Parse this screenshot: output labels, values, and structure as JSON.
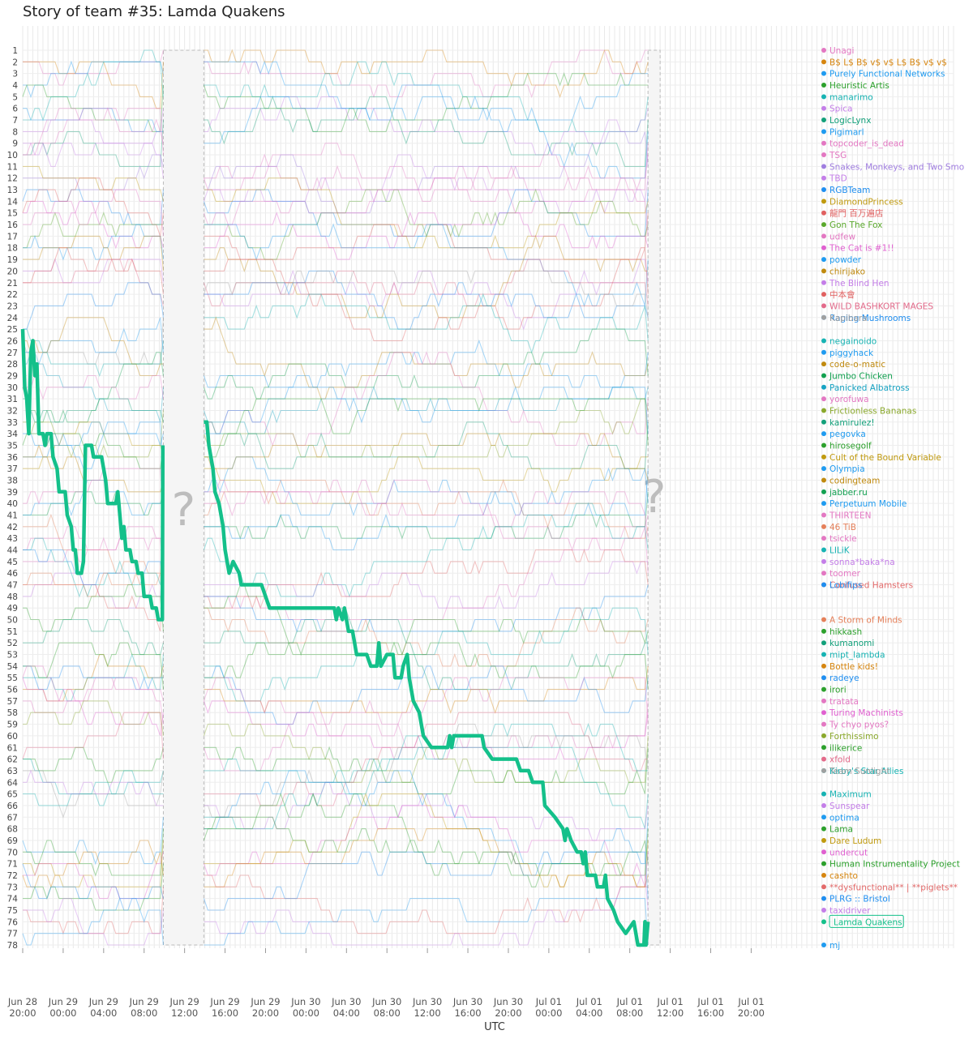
{
  "chart_data": {
    "type": "line",
    "title": "Story of team #35: Lamda Quakens",
    "xlabel": "UTC",
    "ylabel": "",
    "y_axis": "rank (1 at top, 78 at bottom)",
    "ylim": [
      1,
      78
    ],
    "xlim_hours_from_start": [
      0,
      92
    ],
    "x_ticks": [
      {
        "line1": "Jun 28",
        "line2": "20:00",
        "hour": 0
      },
      {
        "line1": "Jun 29",
        "line2": "00:00",
        "hour": 4
      },
      {
        "line1": "Jun 29",
        "line2": "04:00",
        "hour": 8
      },
      {
        "line1": "Jun 29",
        "line2": "08:00",
        "hour": 12
      },
      {
        "line1": "Jun 29",
        "line2": "12:00",
        "hour": 16
      },
      {
        "line1": "Jun 29",
        "line2": "16:00",
        "hour": 20
      },
      {
        "line1": "Jun 29",
        "line2": "20:00",
        "hour": 24
      },
      {
        "line1": "Jun 30",
        "line2": "00:00",
        "hour": 28
      },
      {
        "line1": "Jun 30",
        "line2": "04:00",
        "hour": 32
      },
      {
        "line1": "Jun 30",
        "line2": "08:00",
        "hour": 36
      },
      {
        "line1": "Jun 30",
        "line2": "12:00",
        "hour": 40
      },
      {
        "line1": "Jun 30",
        "line2": "16:00",
        "hour": 44
      },
      {
        "line1": "Jun 30",
        "line2": "20:00",
        "hour": 48
      },
      {
        "line1": "Jul 01",
        "line2": "00:00",
        "hour": 52
      },
      {
        "line1": "Jul 01",
        "line2": "04:00",
        "hour": 56
      },
      {
        "line1": "Jul 01",
        "line2": "08:00",
        "hour": 60
      },
      {
        "line1": "Jul 01",
        "line2": "12:00",
        "hour": 64
      },
      {
        "line1": "Jul 01",
        "line2": "16:00",
        "hour": 68
      },
      {
        "line1": "Jul 01",
        "line2": "20:00",
        "hour": 72
      }
    ],
    "gaps": [
      {
        "start_hour": 13.9,
        "end_hour": 17.9,
        "label": "?"
      },
      {
        "start_hour": 61.8,
        "end_hour": 63.0,
        "label": "?"
      }
    ],
    "teams": [
      {
        "rank": 1,
        "name": "Unagi",
        "color": "#e377c2"
      },
      {
        "rank": 2,
        "name": "B$ L$ B$ v$ v$ L$ B$ v$ v$",
        "color": "#d6850f"
      },
      {
        "rank": 3,
        "name": "Purely Functional Networks",
        "color": "#1f9bf0"
      },
      {
        "rank": 4,
        "name": "Heuristic Artis",
        "color": "#2ca02c"
      },
      {
        "rank": 5,
        "name": "manarimo",
        "color": "#17b3b3"
      },
      {
        "rank": 6,
        "name": "Spica",
        "color": "#c47ee8"
      },
      {
        "rank": 7,
        "name": "LogicLynx",
        "color": "#12a07a"
      },
      {
        "rank": 8,
        "name": "Pigimarl",
        "color": "#1f9bf0"
      },
      {
        "rank": 9,
        "name": "topcoder_is_dead",
        "color": "#e377c2"
      },
      {
        "rank": 10,
        "name": "TSG",
        "color": "#e377c2"
      },
      {
        "rank": 11,
        "name": "Snakes, Monkeys, and Two Smo",
        "color": "#a07ee0"
      },
      {
        "rank": 12,
        "name": "TBD",
        "color": "#c47ee8"
      },
      {
        "rank": 13,
        "name": "RGBTeam",
        "color": "#1f8ef0"
      },
      {
        "rank": 14,
        "name": "DiamondPrincess",
        "color": "#c09a0f"
      },
      {
        "rank": 15,
        "name": "龍門 百万遍店",
        "color": "#e06060"
      },
      {
        "rank": 16,
        "name": "Gon The Fox",
        "color": "#5aa82c"
      },
      {
        "rank": 17,
        "name": "udfew",
        "color": "#e377c2"
      },
      {
        "rank": 18,
        "name": "The Cat is #1!!",
        "color": "#e060d0"
      },
      {
        "rank": 19,
        "name": "powder",
        "color": "#1f9bf0"
      },
      {
        "rank": 20,
        "name": "chirijako",
        "color": "#c08a0f"
      },
      {
        "rank": 21,
        "name": "The Blind Hen",
        "color": "#c47ee8"
      },
      {
        "rank": 22,
        "name": "中本會",
        "color": "#e06060"
      },
      {
        "rank": 23,
        "name": "WILD BASHKORT MAGES",
        "color": "#e36a8a"
      },
      {
        "rank": 24,
        "name": "Raging Mushrooms",
        "color": "#1f8ef0"
      },
      {
        "rank": 24.1,
        "name": "Kapibara",
        "color": "#a0a0a0"
      },
      {
        "rank": 26,
        "name": "negainoido",
        "color": "#17b3b3"
      },
      {
        "rank": 27,
        "name": "piggyhack",
        "color": "#1f9bf0"
      },
      {
        "rank": 28,
        "name": "code-o-matic",
        "color": "#c08a0f"
      },
      {
        "rank": 29,
        "name": "Jumbo Chicken",
        "color": "#12a050"
      },
      {
        "rank": 30,
        "name": "Panicked Albatross",
        "color": "#17a3c3"
      },
      {
        "rank": 31,
        "name": "yorofuwa",
        "color": "#e377c2"
      },
      {
        "rank": 32,
        "name": "Frictionless Bananas",
        "color": "#8aa82c"
      },
      {
        "rank": 33,
        "name": "kamirulez!",
        "color": "#12a07a"
      },
      {
        "rank": 34,
        "name": "pegovka",
        "color": "#1f9bf0"
      },
      {
        "rank": 35,
        "name": "hirosegolf",
        "color": "#2ca02c"
      },
      {
        "rank": 36,
        "name": "Cult of the Bound Variable",
        "color": "#c09a0f"
      },
      {
        "rank": 37,
        "name": "Olympia",
        "color": "#1f9bf0"
      },
      {
        "rank": 38,
        "name": "codingteam",
        "color": "#c08a0f"
      },
      {
        "rank": 39,
        "name": "jabber.ru",
        "color": "#12a050"
      },
      {
        "rank": 40,
        "name": "Perpetuum Mobile",
        "color": "#1f9bf0"
      },
      {
        "rank": 41,
        "name": "THIRTEEN",
        "color": "#e377c2"
      },
      {
        "rank": 42,
        "name": "46 TiB",
        "color": "#e5805a"
      },
      {
        "rank": 43,
        "name": "tsickle",
        "color": "#e377c2"
      },
      {
        "rank": 44,
        "name": "LILiK",
        "color": "#17b3b3"
      },
      {
        "rank": 45,
        "name": "sonna*baka*na",
        "color": "#c47ee8"
      },
      {
        "rank": 46,
        "name": "toomer",
        "color": "#e377c2"
      },
      {
        "rank": 47,
        "name": "Confused Hamsters",
        "color": "#e36a6a"
      },
      {
        "rank": 47.1,
        "name": "Lobifips",
        "color": "#1f8ef0"
      },
      {
        "rank": 50,
        "name": "A Storm of Minds",
        "color": "#e5805a"
      },
      {
        "rank": 51,
        "name": "hikkash",
        "color": "#2ca02c"
      },
      {
        "rank": 52,
        "name": "kumanomi",
        "color": "#12a07a"
      },
      {
        "rank": 53,
        "name": "mipt_lambda",
        "color": "#17b3b3"
      },
      {
        "rank": 54,
        "name": "Bottle kids!",
        "color": "#d6850f"
      },
      {
        "rank": 55,
        "name": "radeye",
        "color": "#1f8ef0"
      },
      {
        "rank": 56,
        "name": "irori",
        "color": "#2ca02c"
      },
      {
        "rank": 57,
        "name": "tratata",
        "color": "#e377c2"
      },
      {
        "rank": 58,
        "name": "Turing Machinists",
        "color": "#e060d0"
      },
      {
        "rank": 59,
        "name": "Ty chyo pyos?",
        "color": "#e377c2"
      },
      {
        "rank": 60,
        "name": "Forthissimo",
        "color": "#8aa82c"
      },
      {
        "rank": 61,
        "name": "ilikerice",
        "color": "#2ca02c"
      },
      {
        "rank": 62,
        "name": "xfold",
        "color": "#e36a8a"
      },
      {
        "rank": 63,
        "name": "Kirby's Star Allies",
        "color": "#17b3b3"
      },
      {
        "rank": 63.1,
        "name": "Team Sunlight",
        "color": "#a0a0a0"
      },
      {
        "rank": 65,
        "name": "Maximum",
        "color": "#17b3b3"
      },
      {
        "rank": 66,
        "name": "Sunspear",
        "color": "#c47ee8"
      },
      {
        "rank": 67,
        "name": "optima",
        "color": "#1f9bf0"
      },
      {
        "rank": 68,
        "name": "Lama",
        "color": "#2ca02c"
      },
      {
        "rank": 69,
        "name": "Dare Ludum",
        "color": "#c09a0f"
      },
      {
        "rank": 70,
        "name": "undercut",
        "color": "#e060d0"
      },
      {
        "rank": 71,
        "name": "Human Instrumentality Project",
        "color": "#2ca02c"
      },
      {
        "rank": 72,
        "name": "cashto",
        "color": "#d6850f"
      },
      {
        "rank": 73,
        "name": "**dysfunctional** | **piglets**",
        "color": "#e36a6a"
      },
      {
        "rank": 74,
        "name": "PLRG :: Bristol",
        "color": "#1f8ef0"
      },
      {
        "rank": 75,
        "name": "taxidriver",
        "color": "#c47ee8"
      },
      {
        "rank": 76,
        "name": "Lamda Quakens",
        "color": "#14c08a"
      },
      {
        "rank": 78,
        "name": "mj",
        "color": "#1f9bf0"
      }
    ],
    "highlight_series": {
      "name": "Lamda Quakens",
      "color": "#14c08a",
      "final_rank": 76,
      "points": [
        {
          "hour": 0.0,
          "rank": 25
        },
        {
          "hour": 0.2,
          "rank": 30
        },
        {
          "hour": 0.4,
          "rank": 31
        },
        {
          "hour": 0.6,
          "rank": 34
        },
        {
          "hour": 0.8,
          "rank": 27
        },
        {
          "hour": 1.0,
          "rank": 26
        },
        {
          "hour": 1.2,
          "rank": 29
        },
        {
          "hour": 1.4,
          "rank": 28
        },
        {
          "hour": 1.6,
          "rank": 34
        },
        {
          "hour": 2.0,
          "rank": 34
        },
        {
          "hour": 2.2,
          "rank": 35
        },
        {
          "hour": 2.4,
          "rank": 34
        },
        {
          "hour": 2.8,
          "rank": 34
        },
        {
          "hour": 3.0,
          "rank": 36
        },
        {
          "hour": 3.4,
          "rank": 37
        },
        {
          "hour": 3.6,
          "rank": 39
        },
        {
          "hour": 4.2,
          "rank": 39
        },
        {
          "hour": 4.4,
          "rank": 41
        },
        {
          "hour": 4.8,
          "rank": 42
        },
        {
          "hour": 5.0,
          "rank": 44
        },
        {
          "hour": 5.2,
          "rank": 44
        },
        {
          "hour": 5.4,
          "rank": 46
        },
        {
          "hour": 5.8,
          "rank": 46
        },
        {
          "hour": 6.0,
          "rank": 45
        },
        {
          "hour": 6.2,
          "rank": 35
        },
        {
          "hour": 6.8,
          "rank": 35
        },
        {
          "hour": 7.0,
          "rank": 36
        },
        {
          "hour": 7.8,
          "rank": 36
        },
        {
          "hour": 8.0,
          "rank": 37
        },
        {
          "hour": 8.2,
          "rank": 38
        },
        {
          "hour": 8.4,
          "rank": 40
        },
        {
          "hour": 9.2,
          "rank": 40
        },
        {
          "hour": 9.4,
          "rank": 39
        },
        {
          "hour": 9.6,
          "rank": 41
        },
        {
          "hour": 9.8,
          "rank": 43
        },
        {
          "hour": 10.0,
          "rank": 42
        },
        {
          "hour": 10.2,
          "rank": 44
        },
        {
          "hour": 10.6,
          "rank": 44
        },
        {
          "hour": 10.8,
          "rank": 45
        },
        {
          "hour": 11.2,
          "rank": 45
        },
        {
          "hour": 11.4,
          "rank": 46
        },
        {
          "hour": 11.8,
          "rank": 46
        },
        {
          "hour": 12.0,
          "rank": 48
        },
        {
          "hour": 12.6,
          "rank": 48
        },
        {
          "hour": 12.8,
          "rank": 49
        },
        {
          "hour": 13.2,
          "rank": 49
        },
        {
          "hour": 13.4,
          "rank": 50
        },
        {
          "hour": 13.8,
          "rank": 50
        },
        {
          "hour": 13.85,
          "rank": 35
        }
      ],
      "points_after_gap": [
        {
          "hour": 17.9,
          "rank": 33
        },
        {
          "hour": 18.2,
          "rank": 33
        },
        {
          "hour": 18.4,
          "rank": 35
        },
        {
          "hour": 18.8,
          "rank": 37
        },
        {
          "hour": 19.0,
          "rank": 39
        },
        {
          "hour": 19.4,
          "rank": 40
        },
        {
          "hour": 19.8,
          "rank": 42
        },
        {
          "hour": 20.0,
          "rank": 44
        },
        {
          "hour": 20.4,
          "rank": 46
        },
        {
          "hour": 20.8,
          "rank": 45
        },
        {
          "hour": 21.4,
          "rank": 46
        },
        {
          "hour": 21.6,
          "rank": 47
        },
        {
          "hour": 23.6,
          "rank": 47
        },
        {
          "hour": 24.0,
          "rank": 48
        },
        {
          "hour": 24.4,
          "rank": 49
        },
        {
          "hour": 30.8,
          "rank": 49
        },
        {
          "hour": 31.0,
          "rank": 50
        },
        {
          "hour": 31.2,
          "rank": 49
        },
        {
          "hour": 31.6,
          "rank": 50
        },
        {
          "hour": 31.8,
          "rank": 49
        },
        {
          "hour": 32.2,
          "rank": 51
        },
        {
          "hour": 32.6,
          "rank": 51
        },
        {
          "hour": 33.0,
          "rank": 53
        },
        {
          "hour": 34.0,
          "rank": 53
        },
        {
          "hour": 34.4,
          "rank": 54
        },
        {
          "hour": 35.0,
          "rank": 54
        },
        {
          "hour": 35.2,
          "rank": 52
        },
        {
          "hour": 35.4,
          "rank": 54
        },
        {
          "hour": 36.0,
          "rank": 53
        },
        {
          "hour": 36.6,
          "rank": 53
        },
        {
          "hour": 36.8,
          "rank": 55
        },
        {
          "hour": 37.4,
          "rank": 55
        },
        {
          "hour": 37.6,
          "rank": 54
        },
        {
          "hour": 38.0,
          "rank": 53
        },
        {
          "hour": 38.2,
          "rank": 55
        },
        {
          "hour": 38.6,
          "rank": 57
        },
        {
          "hour": 39.2,
          "rank": 58
        },
        {
          "hour": 39.6,
          "rank": 60
        },
        {
          "hour": 40.4,
          "rank": 61
        },
        {
          "hour": 42.0,
          "rank": 61
        },
        {
          "hour": 42.2,
          "rank": 60
        },
        {
          "hour": 42.4,
          "rank": 61
        },
        {
          "hour": 42.6,
          "rank": 60
        },
        {
          "hour": 45.4,
          "rank": 60
        },
        {
          "hour": 45.6,
          "rank": 61
        },
        {
          "hour": 46.4,
          "rank": 62
        },
        {
          "hour": 48.8,
          "rank": 62
        },
        {
          "hour": 49.2,
          "rank": 63
        },
        {
          "hour": 50.0,
          "rank": 63
        },
        {
          "hour": 50.4,
          "rank": 64
        },
        {
          "hour": 51.4,
          "rank": 64
        },
        {
          "hour": 51.6,
          "rank": 66
        },
        {
          "hour": 52.6,
          "rank": 67
        },
        {
          "hour": 53.4,
          "rank": 68
        },
        {
          "hour": 53.6,
          "rank": 69
        },
        {
          "hour": 53.8,
          "rank": 68
        },
        {
          "hour": 54.2,
          "rank": 69
        },
        {
          "hour": 54.8,
          "rank": 70
        },
        {
          "hour": 55.2,
          "rank": 70
        },
        {
          "hour": 55.4,
          "rank": 71
        },
        {
          "hour": 55.6,
          "rank": 70
        },
        {
          "hour": 55.8,
          "rank": 72
        },
        {
          "hour": 56.6,
          "rank": 72
        },
        {
          "hour": 56.8,
          "rank": 73
        },
        {
          "hour": 57.4,
          "rank": 73
        },
        {
          "hour": 57.6,
          "rank": 72
        },
        {
          "hour": 57.8,
          "rank": 74
        },
        {
          "hour": 58.4,
          "rank": 75
        },
        {
          "hour": 58.8,
          "rank": 76
        },
        {
          "hour": 59.6,
          "rank": 77
        },
        {
          "hour": 60.4,
          "rank": 76
        },
        {
          "hour": 60.8,
          "rank": 78
        },
        {
          "hour": 61.4,
          "rank": 78
        },
        {
          "hour": 61.5,
          "rank": 76
        },
        {
          "hour": 61.6,
          "rank": 78
        },
        {
          "hour": 61.8,
          "rank": 76
        }
      ]
    },
    "legend_placement": "right, labels aligned with final ranks",
    "grid": true
  }
}
